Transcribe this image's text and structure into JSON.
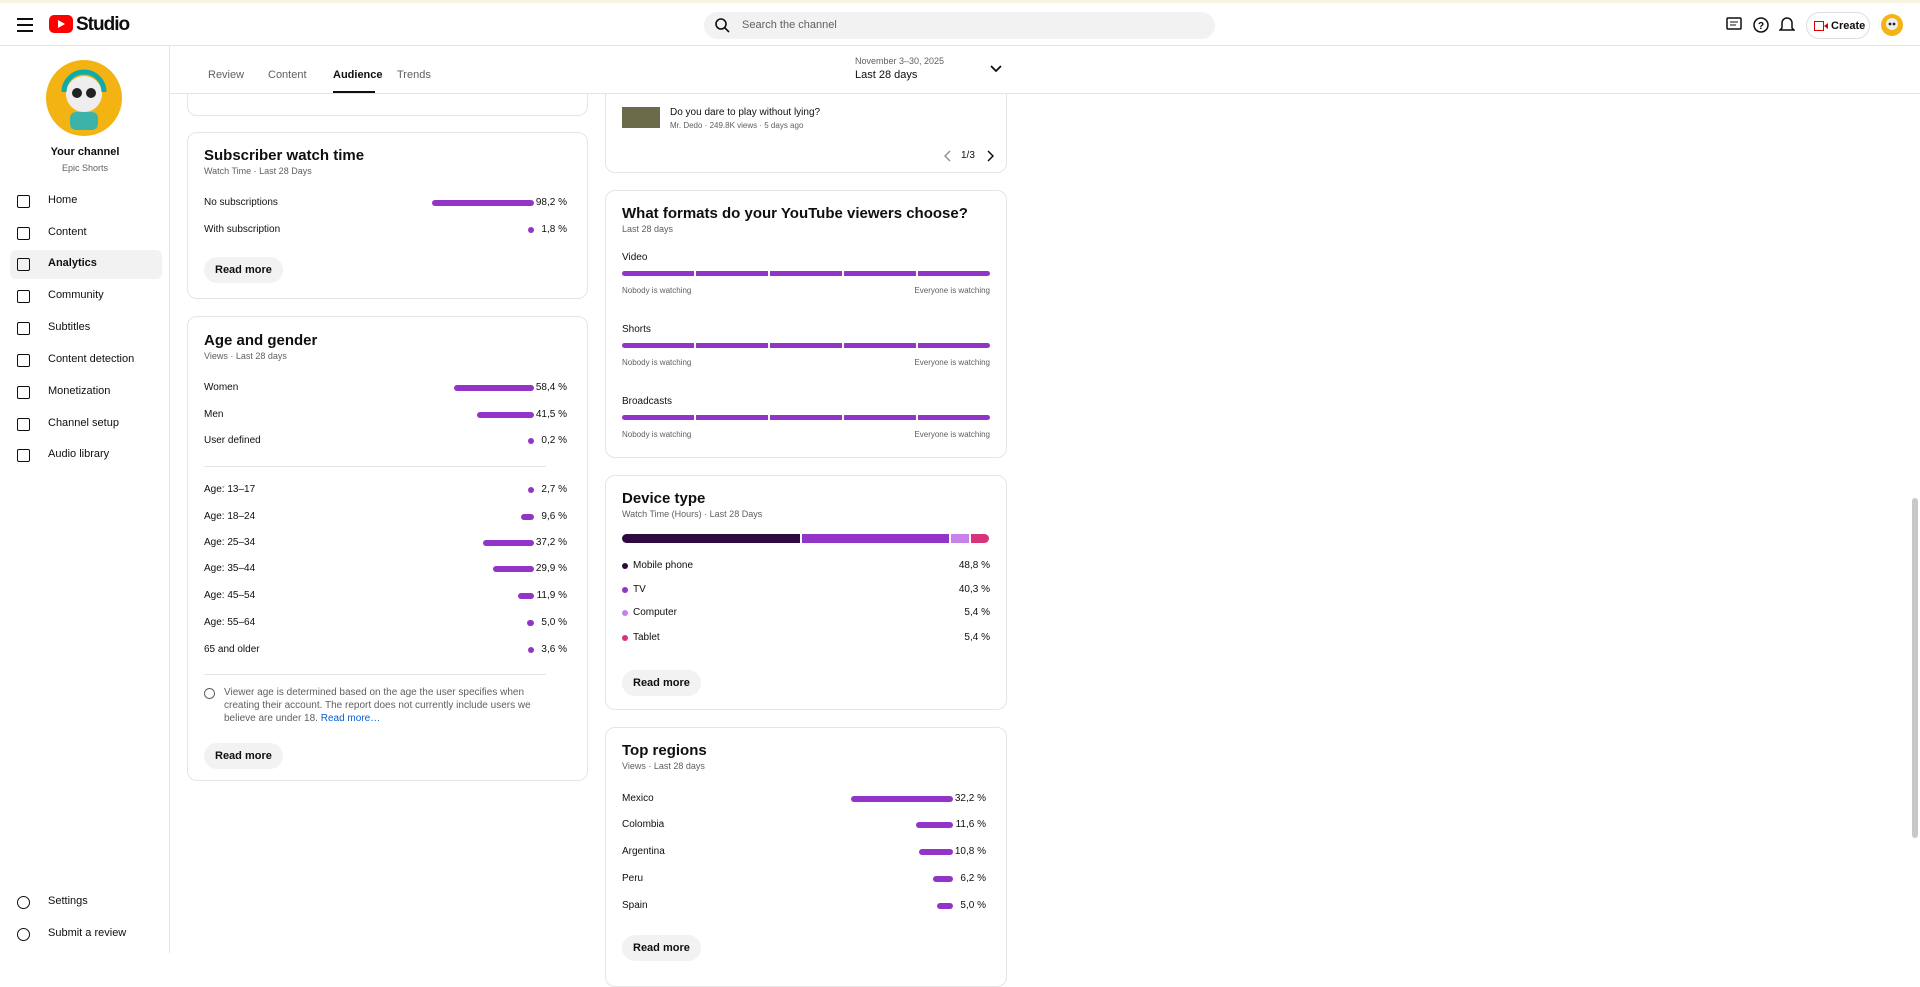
{
  "header": {
    "logo": "Studio",
    "search_placeholder": "Search the channel",
    "create": "Create"
  },
  "sidebar": {
    "channel_title": "Your channel",
    "channel_name": "Epic Shorts",
    "nav": [
      "Home",
      "Content",
      "Analytics",
      "Community",
      "Subtitles",
      "Content detection",
      "Monetization",
      "Channel setup",
      "Audio library"
    ],
    "bottom": [
      "Settings",
      "Submit a review"
    ]
  },
  "tabs": [
    "Review",
    "Content",
    "Audience",
    "Trends"
  ],
  "date_range": {
    "dates": "November 3–30, 2025",
    "period": "Last 28 days"
  },
  "top_video": {
    "title": "Do you dare to play without lying?",
    "meta": "Mr. Dedo · 249.8K views · 5 days ago",
    "pager": "1/3"
  },
  "subscriber_watch_time": {
    "title": "Subscriber watch time",
    "subtitle": "Watch Time · Last 28 Days",
    "rows": [
      {
        "name": "No subscriptions",
        "value": 98.2,
        "label": "98,2 %"
      },
      {
        "name": "With subscription",
        "value": 1.8,
        "label": "1,8 %"
      }
    ],
    "read_more": "Read more"
  },
  "age_gender": {
    "title": "Age and gender",
    "subtitle": "Views · Last 28 days",
    "gender": [
      {
        "name": "Women",
        "value": 58.4,
        "label": "58,4 %"
      },
      {
        "name": "Men",
        "value": 41.5,
        "label": "41,5 %"
      },
      {
        "name": "User defined",
        "value": 0.2,
        "label": "0,2 %"
      }
    ],
    "ages": [
      {
        "name": "Age: 13–17",
        "value": 2.7,
        "label": "2,7 %"
      },
      {
        "name": "Age: 18–24",
        "value": 9.6,
        "label": "9,6 %"
      },
      {
        "name": "Age: 25–34",
        "value": 37.2,
        "label": "37,2 %"
      },
      {
        "name": "Age: 35–44",
        "value": 29.9,
        "label": "29,9 %"
      },
      {
        "name": "Age: 45–54",
        "value": 11.9,
        "label": "11,9 %"
      },
      {
        "name": "Age: 55–64",
        "value": 5.0,
        "label": "5,0 %"
      },
      {
        "name": "65 and older",
        "value": 3.6,
        "label": "3,6 %"
      }
    ],
    "note": "Viewer age is determined based on the age the user specifies when creating their account. The report does not currently include users we believe are under 18.",
    "note_link": "Read more…",
    "read_more": "Read more"
  },
  "formats": {
    "title": "What formats do your YouTube viewers choose?",
    "subtitle": "Last 28 days",
    "rows": [
      {
        "name": "Video",
        "left": "Nobody is watching",
        "right": "Everyone is watching"
      },
      {
        "name": "Shorts",
        "left": "Nobody is watching",
        "right": "Everyone is watching"
      },
      {
        "name": "Broadcasts",
        "left": "Nobody is watching",
        "right": "Everyone is watching"
      }
    ]
  },
  "device_type": {
    "title": "Device type",
    "subtitle": "Watch Time (Hours) · Last 28 Days",
    "rows": [
      {
        "name": "Mobile phone",
        "value": 48.8,
        "label": "48,8 %",
        "color": "#2e0a40"
      },
      {
        "name": "TV",
        "value": 40.3,
        "label": "40,3 %",
        "color": "#9334c9"
      },
      {
        "name": "Computer",
        "value": 5.4,
        "label": "5,4 %",
        "color": "#c781ea"
      },
      {
        "name": "Tablet",
        "value": 5.4,
        "label": "5,4 %",
        "color": "#d8337c"
      }
    ],
    "read_more": "Read more"
  },
  "top_regions": {
    "title": "Top regions",
    "subtitle": "Views · Last 28 days",
    "rows": [
      {
        "name": "Mexico",
        "value": 32.2,
        "label": "32,2 %"
      },
      {
        "name": "Colombia",
        "value": 11.6,
        "label": "11,6 %"
      },
      {
        "name": "Argentina",
        "value": 10.8,
        "label": "10,8 %"
      },
      {
        "name": "Peru",
        "value": 6.2,
        "label": "6,2 %"
      },
      {
        "name": "Spain",
        "value": 5.0,
        "label": "5,0 %"
      }
    ],
    "read_more": "Read more"
  }
}
